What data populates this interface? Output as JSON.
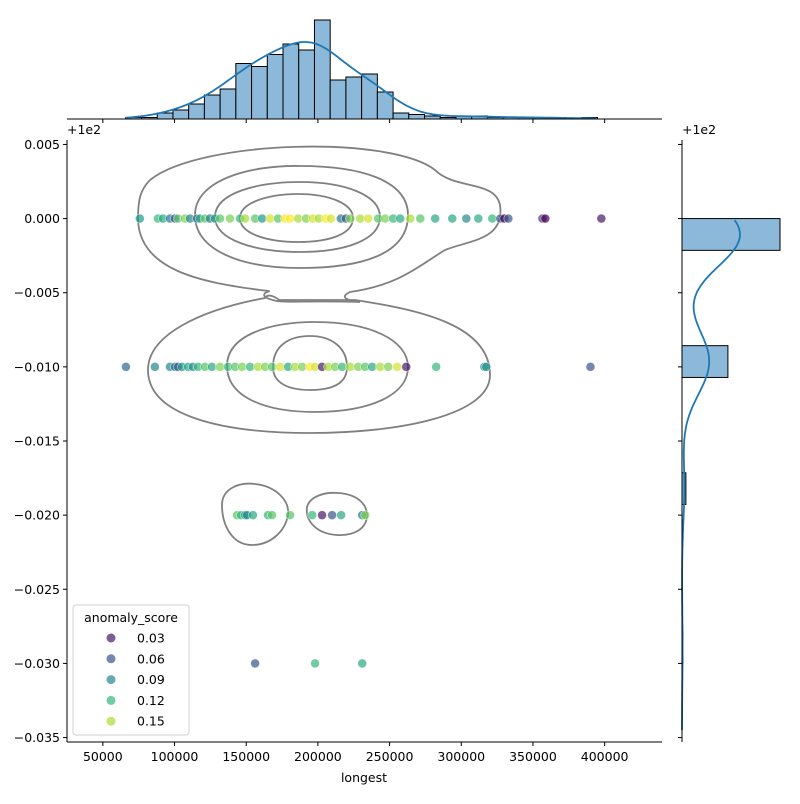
{
  "chart_data": {
    "type": "scatter",
    "subtype": "jointplot",
    "title": "",
    "xlabel": "longest",
    "ylabel": "",
    "xlim": [
      25000,
      440000
    ],
    "ylim": [
      -0.0353,
      0.0053
    ],
    "y_offset_label": "+1e2",
    "x_ticks": [
      50000,
      100000,
      150000,
      200000,
      250000,
      300000,
      350000,
      400000
    ],
    "x_tick_labels": [
      "50000",
      "100000",
      "150000",
      "200000",
      "250000",
      "300000",
      "350000",
      "400000"
    ],
    "y_ticks": [
      0.005,
      0.0,
      -0.005,
      -0.01,
      -0.015,
      -0.02,
      -0.025,
      -0.03,
      -0.035
    ],
    "y_tick_labels": [
      "0.005",
      "0.000",
      "−0.005",
      "−0.010",
      "−0.015",
      "−0.020",
      "−0.025",
      "−0.030",
      "−0.035"
    ],
    "grid": false,
    "hue": {
      "name": "anomaly_score",
      "range": [
        0.02,
        0.17
      ],
      "colormap": "viridis",
      "legend_placement": "lower-left",
      "legend_entries": [
        "0.03",
        "0.06",
        "0.09",
        "0.12",
        "0.15"
      ],
      "legend_values": [
        0.03,
        0.06,
        0.09,
        0.12,
        0.15
      ]
    },
    "points": [
      [
        75800,
        0,
        0.1
      ],
      [
        88400,
        0,
        0.12
      ],
      [
        91900,
        0,
        0.11
      ],
      [
        96800,
        0,
        0.08
      ],
      [
        100300,
        0,
        0.06
      ],
      [
        102400,
        0,
        0.13
      ],
      [
        107300,
        0,
        0.14
      ],
      [
        110800,
        0,
        0.09
      ],
      [
        115700,
        0,
        0.07
      ],
      [
        117700,
        0,
        0.11
      ],
      [
        121200,
        0,
        0.13
      ],
      [
        124700,
        0,
        0.08
      ],
      [
        128200,
        0,
        0.1
      ],
      [
        131700,
        0,
        0.13
      ],
      [
        138700,
        0,
        0.14
      ],
      [
        145700,
        0,
        0.12
      ],
      [
        149200,
        0,
        0.15
      ],
      [
        156200,
        0,
        0.13
      ],
      [
        161100,
        0,
        0.1
      ],
      [
        166700,
        0,
        0.16
      ],
      [
        172200,
        0,
        0.13
      ],
      [
        177100,
        0,
        0.18
      ],
      [
        180600,
        0,
        0.17
      ],
      [
        186200,
        0,
        0.15
      ],
      [
        191700,
        0,
        0.14
      ],
      [
        196400,
        0,
        0.16
      ],
      [
        200600,
        0,
        0.15
      ],
      [
        205500,
        0,
        0.17
      ],
      [
        209000,
        0,
        0.16
      ],
      [
        216000,
        0,
        0.08
      ],
      [
        219500,
        0,
        0.06
      ],
      [
        222500,
        0,
        0.14
      ],
      [
        229500,
        0,
        0.15
      ],
      [
        235100,
        0,
        0.16
      ],
      [
        242000,
        0,
        0.13
      ],
      [
        246900,
        0,
        0.14
      ],
      [
        252500,
        0,
        0.12
      ],
      [
        257400,
        0,
        0.11
      ],
      [
        264400,
        0,
        0.15
      ],
      [
        271400,
        0,
        0.13
      ],
      [
        281800,
        0,
        0.11
      ],
      [
        293700,
        0,
        0.11
      ],
      [
        303500,
        0,
        0.09
      ],
      [
        311900,
        0,
        0.11
      ],
      [
        321600,
        0,
        0.12
      ],
      [
        327200,
        0,
        0.06
      ],
      [
        330000,
        0,
        0.02
      ],
      [
        332800,
        0,
        0.06
      ],
      [
        356600,
        0,
        0.04
      ],
      [
        358600,
        0,
        0.02
      ],
      [
        397700,
        0,
        0.03
      ],
      [
        66100,
        -0.01,
        0.07
      ],
      [
        86300,
        -0.01,
        0.09
      ],
      [
        96800,
        -0.01,
        0.09
      ],
      [
        100300,
        -0.01,
        0.08
      ],
      [
        102400,
        -0.01,
        0.06
      ],
      [
        105200,
        -0.01,
        0.1
      ],
      [
        109400,
        -0.01,
        0.11
      ],
      [
        112800,
        -0.01,
        0.09
      ],
      [
        116300,
        -0.01,
        0.12
      ],
      [
        121200,
        -0.01,
        0.13
      ],
      [
        126100,
        -0.01,
        0.11
      ],
      [
        131700,
        -0.01,
        0.14
      ],
      [
        137300,
        -0.01,
        0.12
      ],
      [
        142200,
        -0.01,
        0.13
      ],
      [
        147100,
        -0.01,
        0.14
      ],
      [
        152700,
        -0.01,
        0.12
      ],
      [
        158200,
        -0.01,
        0.15
      ],
      [
        163100,
        -0.01,
        0.14
      ],
      [
        168000,
        -0.01,
        0.13
      ],
      [
        173600,
        -0.01,
        0.16
      ],
      [
        179200,
        -0.01,
        0.11
      ],
      [
        184100,
        -0.01,
        0.15
      ],
      [
        189000,
        -0.01,
        0.14
      ],
      [
        194500,
        -0.01,
        0.17
      ],
      [
        198000,
        -0.01,
        0.16
      ],
      [
        202900,
        -0.01,
        0.03
      ],
      [
        207100,
        -0.01,
        0.15
      ],
      [
        212000,
        -0.01,
        0.14
      ],
      [
        216900,
        -0.01,
        0.12
      ],
      [
        222500,
        -0.01,
        0.15
      ],
      [
        228100,
        -0.01,
        0.14
      ],
      [
        232900,
        -0.01,
        0.13
      ],
      [
        237800,
        -0.01,
        0.11
      ],
      [
        243400,
        -0.01,
        0.15
      ],
      [
        249000,
        -0.01,
        0.14
      ],
      [
        255300,
        -0.01,
        0.16
      ],
      [
        261600,
        -0.01,
        0.03
      ],
      [
        282500,
        -0.01,
        0.12
      ],
      [
        316100,
        -0.01,
        0.09
      ],
      [
        317400,
        -0.01,
        0.1
      ],
      [
        390100,
        -0.01,
        0.06
      ],
      [
        143600,
        -0.02,
        0.13
      ],
      [
        146400,
        -0.02,
        0.12
      ],
      [
        149200,
        -0.02,
        0.1
      ],
      [
        150600,
        -0.02,
        0.09
      ],
      [
        154700,
        -0.02,
        0.11
      ],
      [
        165200,
        -0.02,
        0.12
      ],
      [
        168000,
        -0.02,
        0.13
      ],
      [
        180600,
        -0.02,
        0.13
      ],
      [
        196000,
        -0.02,
        0.12
      ],
      [
        202900,
        -0.02,
        0.03
      ],
      [
        209900,
        -0.02,
        0.06
      ],
      [
        216200,
        -0.02,
        0.11
      ],
      [
        230900,
        -0.02,
        0.08
      ],
      [
        233000,
        -0.02,
        0.14
      ],
      [
        156200,
        -0.03,
        0.06
      ],
      [
        198000,
        -0.03,
        0.12
      ],
      [
        230900,
        -0.03,
        0.11
      ]
    ],
    "x_marginal": {
      "type": "histogram",
      "bin_start": 66000,
      "bin_width": 10967,
      "counts": [
        1,
        1,
        4,
        6,
        10,
        16,
        20,
        37,
        35,
        43,
        50,
        46,
        66,
        26,
        28,
        30,
        18,
        4,
        3,
        2,
        1,
        2,
        2,
        1,
        1,
        1,
        1,
        1,
        0,
        1
      ],
      "kde": true
    },
    "y_marginal": {
      "type": "histogram",
      "bin_start": -0.03,
      "bin_width": 0.0021429,
      "counts": [
        3,
        0,
        0,
        0,
        0,
        12,
        0,
        0,
        0,
        141,
        0,
        0,
        0,
        301
      ],
      "kde": true
    },
    "colors": {
      "hist_fill": "#8cb9d9",
      "kde_line": "#1f77b4",
      "contour": "#808080"
    }
  }
}
